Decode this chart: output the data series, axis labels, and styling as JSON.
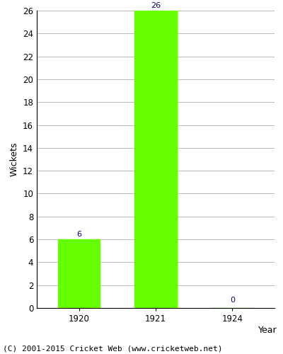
{
  "categories": [
    "1920",
    "1921",
    "1924"
  ],
  "values": [
    6,
    26,
    0
  ],
  "bar_color": "#66ff00",
  "bar_edgecolor": "#66ff00",
  "ylabel": "Wickets",
  "xlabel": "Year",
  "ylim": [
    0,
    26
  ],
  "yticks": [
    0,
    2,
    4,
    6,
    8,
    10,
    12,
    14,
    16,
    18,
    20,
    22,
    24,
    26
  ],
  "label_color": "#000080",
  "label_fontsize": 8,
  "axis_fontsize": 9,
  "tick_fontsize": 8.5,
  "background_color": "#ffffff",
  "grid_color": "#bbbbbb",
  "footer_text": "(C) 2001-2015 Cricket Web (www.cricketweb.net)",
  "footer_fontsize": 8
}
